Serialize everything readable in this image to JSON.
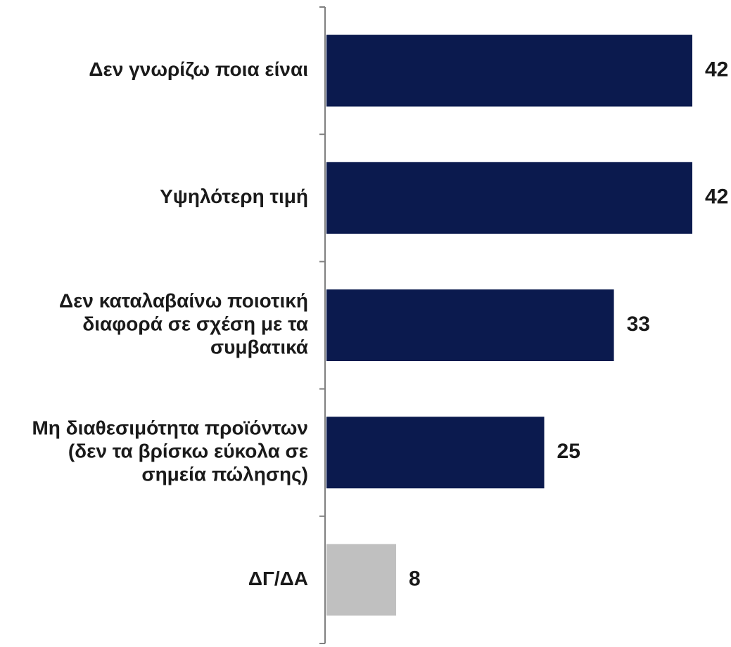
{
  "chart_data": {
    "type": "bar",
    "orientation": "horizontal",
    "categories": [
      [
        "Δεν γνωρίζω ποια είναι"
      ],
      [
        "Υψηλότερη τιμή"
      ],
      [
        "Δεν καταλαβαίνω ποιοτική",
        "διαφορά σε σχέση με τα",
        "συμβατικά"
      ],
      [
        "Μη διαθεσιμότητα προϊόντων",
        "(δεν τα βρίσκω εύκολα σε",
        "σημεία πώλησης)"
      ],
      [
        "ΔΓ/ΔΑ"
      ]
    ],
    "values": [
      42,
      42,
      33,
      25,
      8
    ],
    "colors": [
      "#0b1a4e",
      "#0b1a4e",
      "#0b1a4e",
      "#0b1a4e",
      "#c0c0c0"
    ],
    "title": "",
    "xlabel": "",
    "ylabel": "",
    "xlim": [
      0,
      42
    ],
    "grid": false,
    "legend": "none"
  }
}
